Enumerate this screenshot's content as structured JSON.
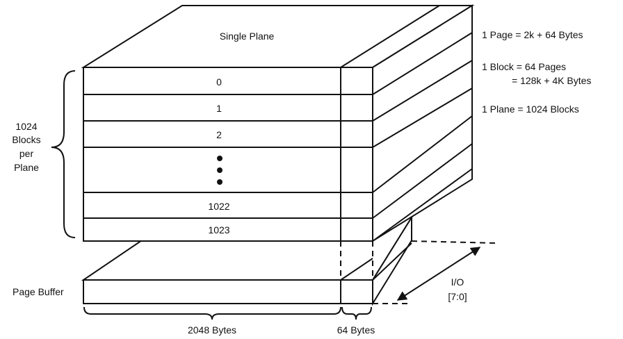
{
  "plane": {
    "title": "Single Plane",
    "rows": [
      "0",
      "1",
      "2",
      "1022",
      "1023"
    ]
  },
  "left_label": [
    "1024",
    "Blocks",
    "per",
    "Plane"
  ],
  "notes": {
    "page": "1 Page = 2k + 64 Bytes",
    "block_line1": "1 Block = 64 Pages",
    "block_line2": "= 128k + 4K Bytes",
    "plane": "1 Plane = 1024 Blocks"
  },
  "buffer": {
    "label": "Page Buffer",
    "main_bytes": "2048 Bytes",
    "spare_bytes": "64 Bytes"
  },
  "io": {
    "line1": "I/O",
    "line2": "[7:0]"
  }
}
